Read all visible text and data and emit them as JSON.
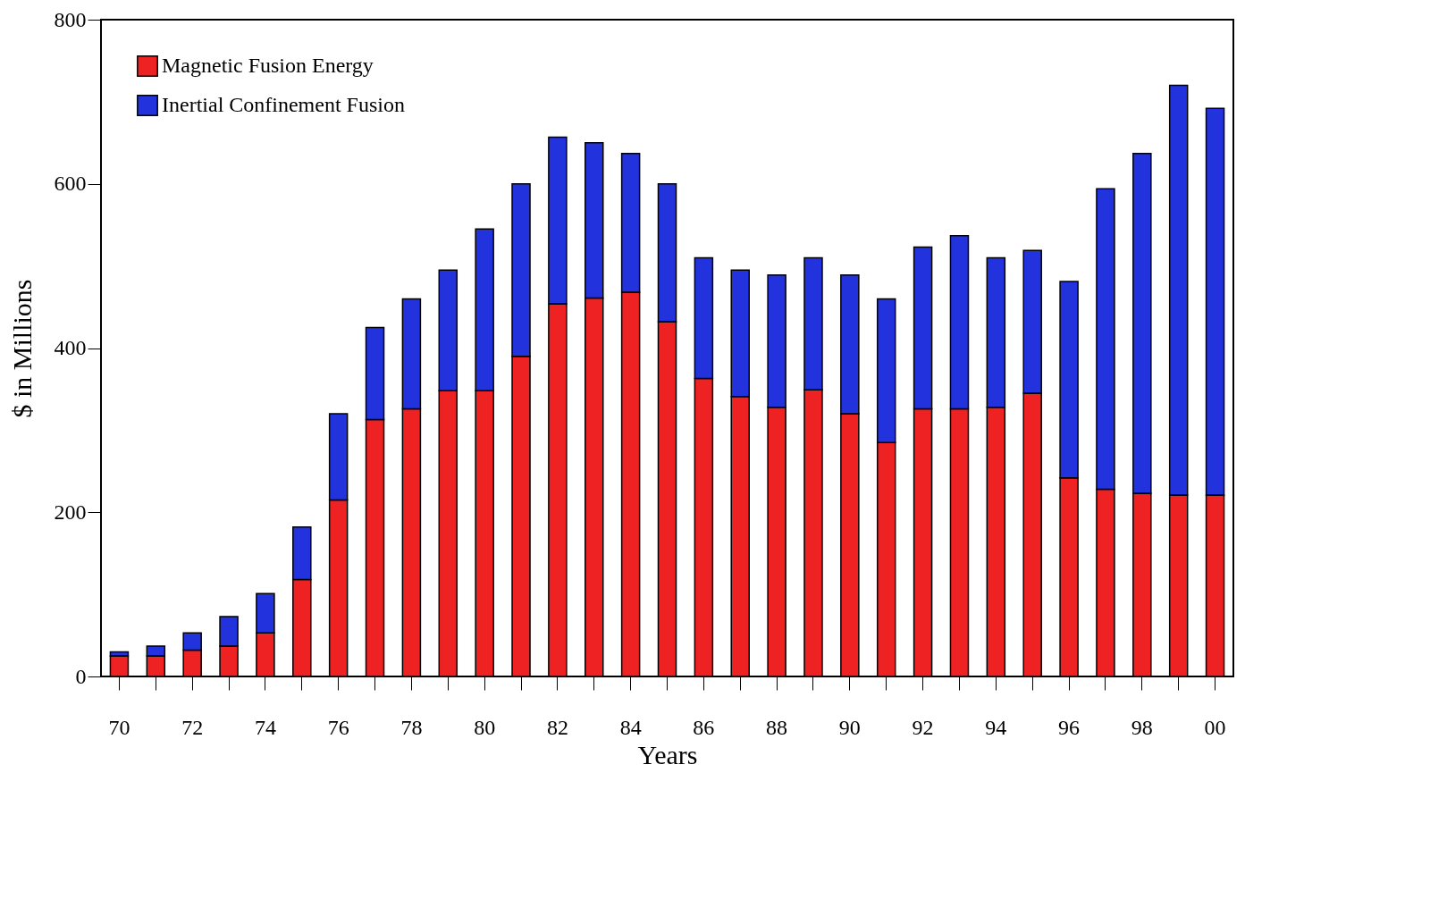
{
  "chart_data": {
    "type": "bar",
    "stacked": true,
    "xlabel": "Years",
    "ylabel": "$ in Millions",
    "categories": [
      "70",
      null,
      "72",
      null,
      "74",
      null,
      "76",
      null,
      "78",
      null,
      "80",
      null,
      "82",
      null,
      "84",
      null,
      "86",
      null,
      "88",
      null,
      "90",
      null,
      "92",
      null,
      "94",
      null,
      "96",
      null,
      "98",
      null,
      "00"
    ],
    "series": [
      {
        "name": "Magnetic Fusion Energy",
        "color": "#ee2222",
        "values": [
          25,
          25,
          32,
          37,
          53,
          118,
          215,
          313,
          326,
          348,
          348,
          390,
          454,
          461,
          468,
          432,
          363,
          341,
          328,
          349,
          320,
          285,
          326,
          326,
          328,
          345,
          242,
          228,
          223,
          221,
          221
        ]
      },
      {
        "name": "Inertial Confinement Fusion",
        "color": "#2233dd",
        "values": [
          5,
          12,
          21,
          36,
          48,
          64,
          105,
          112,
          134,
          147,
          197,
          210,
          203,
          189,
          169,
          168,
          147,
          154,
          161,
          161,
          169,
          175,
          197,
          211,
          182,
          174,
          239,
          366,
          414,
          499,
          471
        ]
      }
    ],
    "ylim": [
      0,
      800
    ],
    "yticks": [
      0,
      200,
      400,
      600,
      800
    ],
    "grid": false,
    "legend": "top left"
  }
}
